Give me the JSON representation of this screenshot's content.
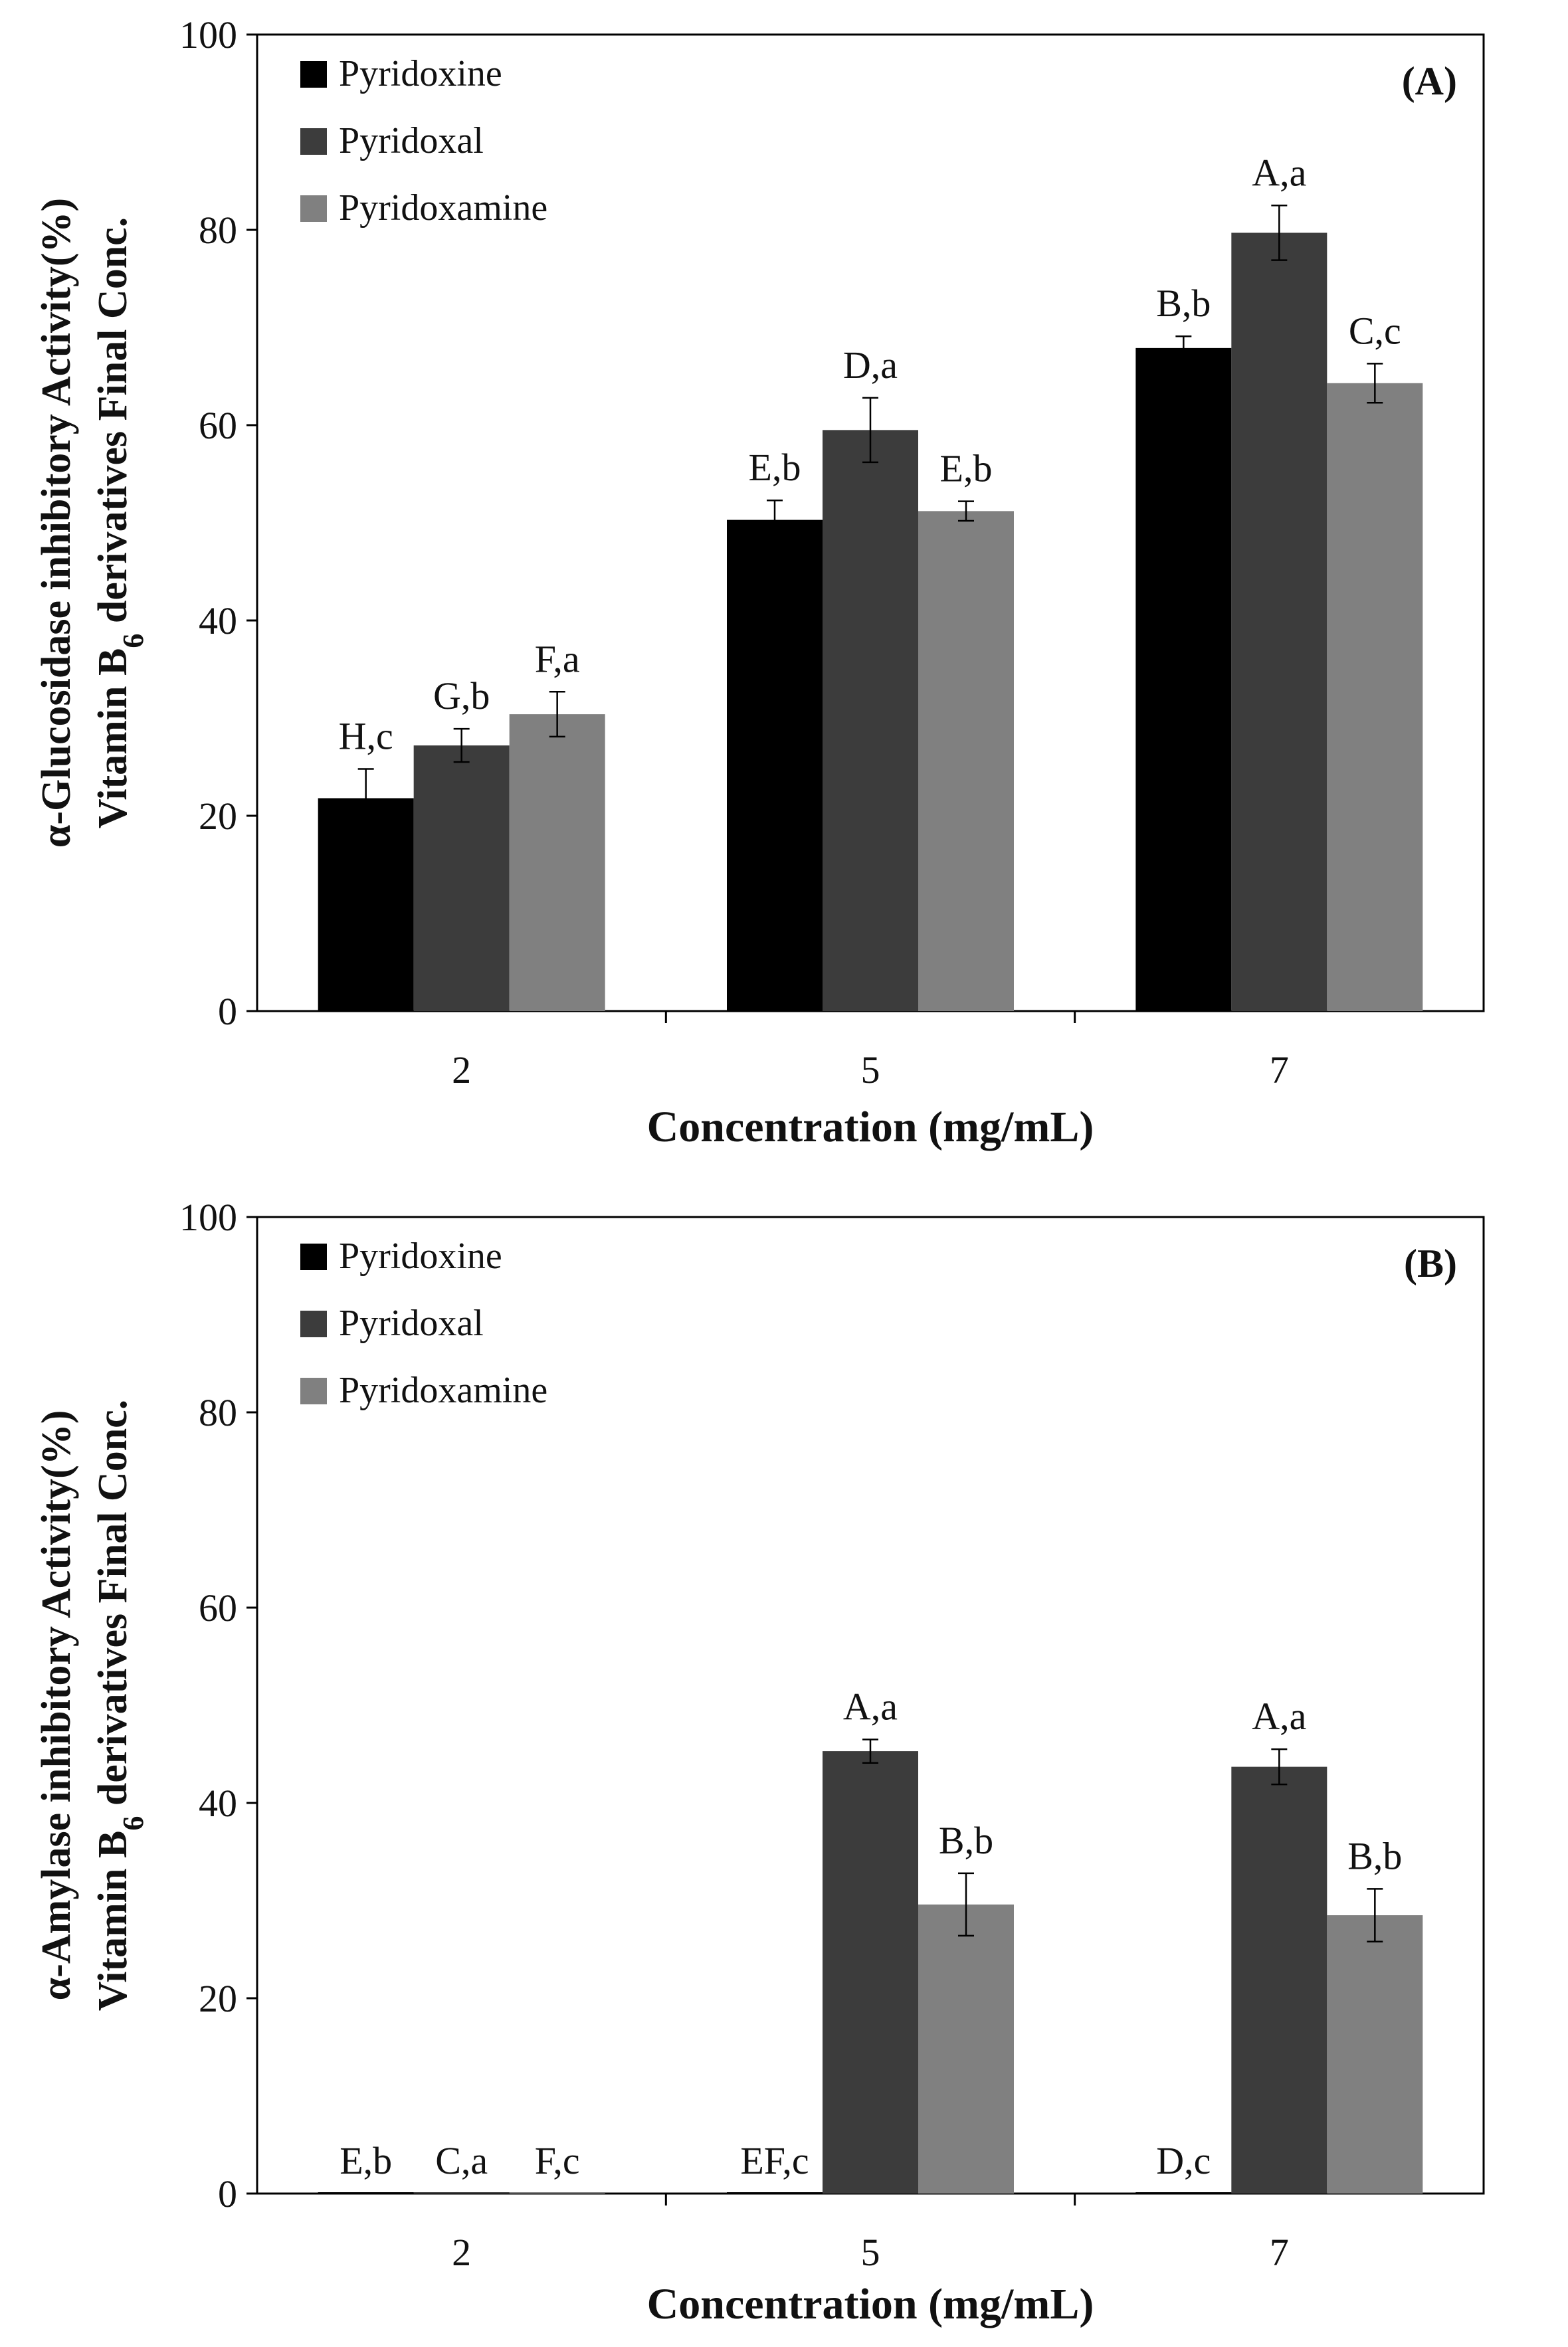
{
  "chart_data": [
    {
      "type": "bar",
      "panel_label": "(A)",
      "categories": [
        "2",
        "5",
        "7"
      ],
      "series": [
        {
          "name": "Pyridoxine",
          "color": "#000000",
          "values": [
            21.8,
            50.3,
            67.9
          ],
          "errors": [
            3.0,
            2.0,
            1.2
          ],
          "labels": [
            "H,c",
            "E,b",
            "B,b"
          ]
        },
        {
          "name": "Pyridoxal",
          "color": "#3c3c3c",
          "values": [
            27.2,
            59.5,
            79.7
          ],
          "errors": [
            1.7,
            3.3,
            2.8
          ],
          "labels": [
            "G,b",
            "D,a",
            "A,a"
          ]
        },
        {
          "name": "Pyridoxamine",
          "color": "#808080",
          "values": [
            30.4,
            51.2,
            64.3
          ],
          "errors": [
            2.3,
            1.0,
            2.0
          ],
          "labels": [
            "F,a",
            "E,b",
            "C,c"
          ]
        }
      ],
      "ylim": [
        0,
        100
      ],
      "yticks": [
        "0",
        "20",
        "40",
        "60",
        "80",
        "100"
      ],
      "xlabel": "Concentration (mg/mL)",
      "ylabel_line1": "α-Glucosidase inhibitory Activity(%)",
      "ylabel_line2_prefix": "Vitamin B",
      "ylabel_line2_sub": "6",
      "ylabel_line2_suffix": " derivatives Final Conc.",
      "legend_position": "top-left"
    },
    {
      "type": "bar",
      "panel_label": "(B)",
      "categories": [
        "2",
        "5",
        "7"
      ],
      "series": [
        {
          "name": "Pyridoxine",
          "color": "#000000",
          "values": [
            0,
            0,
            0
          ],
          "errors": [
            0,
            0,
            0
          ],
          "labels": [
            "E,b",
            "EF,c",
            "D,c"
          ]
        },
        {
          "name": "Pyridoxal",
          "color": "#3c3c3c",
          "values": [
            0,
            45.3,
            43.7
          ],
          "errors": [
            0,
            1.2,
            1.8
          ],
          "labels": [
            "C,a",
            "A,a",
            "A,a"
          ]
        },
        {
          "name": "Pyridoxamine",
          "color": "#808080",
          "values": [
            0,
            29.6,
            28.5
          ],
          "errors": [
            0,
            3.2,
            2.7
          ],
          "labels": [
            "F,c",
            "B,b",
            "B,b"
          ]
        }
      ],
      "ylim": [
        0,
        100
      ],
      "yticks": [
        "0",
        "20",
        "40",
        "60",
        "80",
        "100"
      ],
      "xlabel": "Concentration (mg/mL)",
      "ylabel_line1": "α-Amylase inhibitory Activity(%)",
      "ylabel_line2_prefix": "Vitamin B",
      "ylabel_line2_sub": "6",
      "ylabel_line2_suffix": " derivatives Final Conc.",
      "legend_position": "top-left"
    }
  ]
}
